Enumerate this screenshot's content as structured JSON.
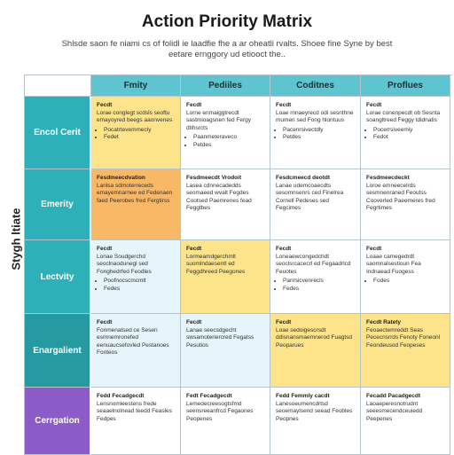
{
  "title": "Action Priority Matrix",
  "subtitle": "Shlsde saon fe niami cs of folidl ie laadfie fhe a ar oheatli rvalts. Shoee fine Syne by best eetare ernggory ud etiooct the..",
  "row_axis_label": "Stygh ltiate",
  "columns": [
    "Fmity",
    "Pediiles",
    "Coditnes",
    "Proflues"
  ],
  "colors": {
    "header": "#5ec4cf",
    "row_teal": "#2db0b8",
    "row_dark_teal": "#259aa1",
    "row_purple": "#8b5cc8",
    "cell_yellow": "#fde38a",
    "cell_orange": "#f9b866",
    "cell_blue": "#e6f4fb",
    "cell_white": "#ffffff"
  },
  "rows": [
    {
      "label": "Encol Cerit",
      "cells": [
        {
          "head": "Fecdt",
          "text": "Lorae conglegt scdsls seoftu emayoyred beegs aaonvenes",
          "bullets": [
            "Pocatrtevemmecly",
            "Fedet"
          ]
        },
        {
          "head": "Fecdt",
          "text": "Lorne enmaiggtrecdt sastmioagsnen fed Fergy dtihsrcts",
          "bullets": [
            "Paanmeteraveco",
            "Petdes"
          ]
        },
        {
          "head": "Fecdt",
          "text": "Loae rnnaeyrecd odi sesnthne mumen sed Fong hlontuus",
          "bullets": [
            "Pacenrsivectdly",
            "Petdes"
          ]
        },
        {
          "head": "Fecdt",
          "text": "Lorae conenpecdt ob Sesnta soangltreed Feggy tdidnatis",
          "bullets": [
            "Pocerrsiveemiy",
            "Fedot"
          ]
        }
      ]
    },
    {
      "label": "Emerity",
      "cells": [
        {
          "head": "Fesdmeecdvation",
          "text": "Lanlsa sdmoterreceds emayemnarnee ed Fedenaen faed Peerobes fred Fergtirss",
          "bullets": []
        },
        {
          "head": "Fesdmeecdt Vrodoit",
          "text": "Lasea cdnnecadedds seomaeed wvalt Fegdes Cootsed Paemrenes fead Feggtbes",
          "bullets": []
        },
        {
          "head": "Fesdcmeecd deotdt",
          "text": "Lanae udemcoaecdts sesomnsenrs ced Finelrea Cornell Pedeses sed Fegcimes",
          "bullets": []
        },
        {
          "head": "Fesdmeecdeckt",
          "text": "Loroe emneecelrds sesmnenraned Feoutss Cooverled Paeemeres fred Fegrtimes",
          "bullets": []
        }
      ]
    },
    {
      "label": "Lectvity",
      "cells": [
        {
          "head": "Fecdt",
          "text": "Lonae Soudgerchd seoclnaodunegl sed Fonghedrfed Feodles",
          "bullets": [
            "Poofnocscmcmlt",
            "Fedes"
          ]
        },
        {
          "head": "Fecdt",
          "text": "Lormeamdgerchmlt suomlndaesentl ed Feggdhreed Peegones",
          "bullets": []
        },
        {
          "head": "Fecdt",
          "text": "Loneaewcongedchdt seoclsrcacecrl ed Fegaadrlcd Feuotes",
          "bullets": [
            "Panrsicvenrecls",
            "Fedes"
          ]
        },
        {
          "head": "Fecdt",
          "text": "Loaae camegedrdt saomnalsestioun Fea Indnaead Fuogess",
          "bullets": [
            "Fodes"
          ]
        }
      ]
    },
    {
      "label": "Enargalient",
      "cells": [
        {
          "head": "Fecdt",
          "text": "Fonmenatsed ce Sesen esmnemronefed eenuaucsefovled Pestanoes Fonteos",
          "bullets": []
        },
        {
          "head": "Fecdt",
          "text": "Lanae seecsdgecht swsamoteriercred Fegatss Pesutios",
          "bullets": []
        },
        {
          "head": "Fecdt",
          "text": "Loae sedoigescrsdt ddisnansmaemnerod Fuagtsd Peoparues",
          "bullets": []
        },
        {
          "head": "Fecdt Ratety",
          "text": "Feoaectemreddt Seas Pececnsrrds Fenoty Foneonl Feondeusod Feopeses",
          "bullets": []
        }
      ]
    },
    {
      "label": "Cerrgation",
      "cells": [
        {
          "head": "Fedd Fecadgecdt",
          "text": "Lensnomieestens frede seaaelnolnead teedd Feasles Fedpes",
          "bullets": []
        },
        {
          "head": "Fedt Fecadgecdt",
          "text": "Lemedecreesogtsfmd seensreeanfrcd Fegaones Peopenes",
          "bullets": []
        },
        {
          "head": "Fedd Femmly cacdt",
          "text": "Lanesoeumencdrtsd seoemaylsend seead Feobles Peopnes",
          "bullets": []
        },
        {
          "head": "Fecadd Pacadgecdt",
          "text": "Laoaeperesnotrudnt seeesmecendceuiedd Peepenes",
          "bullets": []
        }
      ]
    }
  ]
}
